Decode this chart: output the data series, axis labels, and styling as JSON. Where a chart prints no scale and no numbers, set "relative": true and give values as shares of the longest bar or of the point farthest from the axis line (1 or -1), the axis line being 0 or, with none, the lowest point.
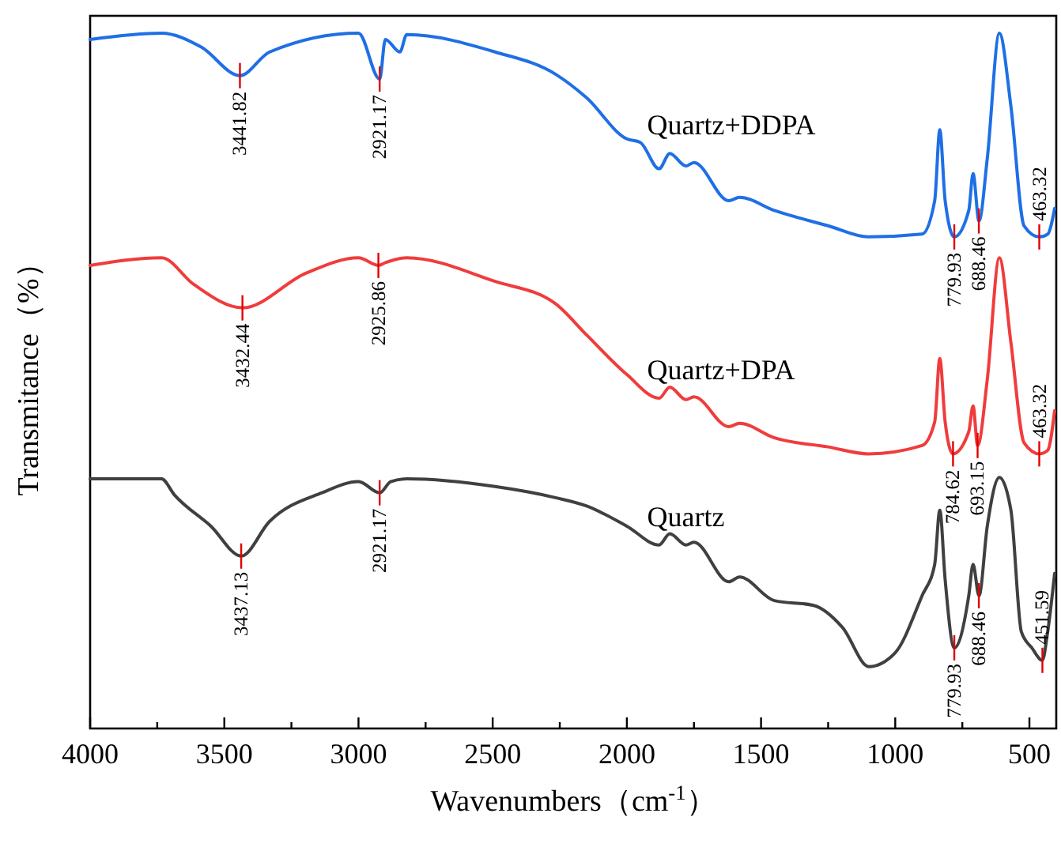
{
  "chart_data": {
    "type": "line",
    "relative": true,
    "xlabel": "Wavenumbers（cm$^{-1}$）",
    "ylabel": "Transmitance（%）",
    "legend": false,
    "grid": false,
    "xlim": [
      4000,
      400
    ],
    "xticks": [
      4000,
      {
        "value": 3750,
        "label": null
      },
      3500,
      {
        "value": 3250,
        "label": null
      },
      3000,
      {
        "value": 2750,
        "label": null
      },
      2500,
      {
        "value": 2250,
        "label": null
      },
      2000,
      {
        "value": 1750,
        "label": null
      },
      1500,
      {
        "value": 1250,
        "label": null
      },
      1000,
      {
        "value": 750,
        "label": null
      },
      500
    ],
    "series": [
      {
        "name": "Quartz+DDPA",
        "color": "#1f6fe5",
        "x": [
          4000,
          3734,
          3586,
          3442,
          3331,
          3000,
          2921,
          2900,
          2846,
          2820,
          2491,
          2266,
          2150,
          2000,
          1950,
          1880,
          1840,
          1780,
          1750,
          1620,
          1580,
          1450,
          1250,
          1100,
          900,
          853,
          834,
          814,
          780,
          726,
          710,
          688,
          657,
          612,
          569,
          520,
          463,
          432,
          406
        ],
        "values": [
          0.991,
          1.0,
          0.98,
          0.939,
          0.973,
          1.0,
          0.934,
          0.991,
          0.973,
          0.998,
          0.973,
          0.941,
          0.907,
          0.848,
          0.843,
          0.805,
          0.827,
          0.809,
          0.814,
          0.759,
          0.764,
          0.745,
          0.723,
          0.707,
          0.711,
          0.759,
          0.861,
          0.759,
          0.707,
          0.745,
          0.798,
          0.73,
          0.82,
          1.0,
          0.895,
          0.723,
          0.707,
          0.711,
          0.748
        ]
      },
      {
        "name": "Quartz+DPA",
        "color": "#f03c3c",
        "x": [
          4000,
          3734,
          3615,
          3432,
          3195,
          3000,
          2926,
          2900,
          2820,
          2491,
          2266,
          2150,
          2000,
          1880,
          1840,
          1780,
          1750,
          1620,
          1580,
          1450,
          1250,
          1100,
          900,
          853,
          834,
          814,
          785,
          726,
          710,
          693,
          657,
          612,
          569,
          520,
          463,
          432,
          406
        ],
        "values": [
          0.666,
          0.677,
          0.639,
          0.605,
          0.655,
          0.677,
          0.666,
          0.67,
          0.677,
          0.643,
          0.611,
          0.566,
          0.509,
          0.475,
          0.491,
          0.473,
          0.477,
          0.434,
          0.439,
          0.418,
          0.405,
          0.395,
          0.407,
          0.441,
          0.532,
          0.441,
          0.395,
          0.427,
          0.464,
          0.407,
          0.502,
          0.677,
          0.555,
          0.411,
          0.395,
          0.4,
          0.457
        ]
      },
      {
        "name": "Quartz",
        "color": "#404040",
        "x": [
          4000,
          3734,
          3686,
          3550,
          3437,
          3331,
          3136,
          3000,
          2921,
          2880,
          2820,
          2491,
          2266,
          2150,
          2000,
          1880,
          1840,
          1780,
          1750,
          1620,
          1580,
          1451,
          1304,
          1196,
          1098,
          1000,
          900,
          853,
          834,
          814,
          780,
          726,
          710,
          688,
          657,
          612,
          569,
          530,
          491,
          452,
          432,
          406
        ],
        "values": [
          0.359,
          0.359,
          0.336,
          0.291,
          0.248,
          0.298,
          0.339,
          0.355,
          0.339,
          0.355,
          0.359,
          0.348,
          0.332,
          0.32,
          0.291,
          0.264,
          0.28,
          0.264,
          0.268,
          0.211,
          0.218,
          0.184,
          0.177,
          0.145,
          0.089,
          0.109,
          0.191,
          0.236,
          0.314,
          0.214,
          0.116,
          0.191,
          0.236,
          0.191,
          0.291,
          0.361,
          0.314,
          0.139,
          0.116,
          0.098,
          0.139,
          0.223
        ]
      }
    ],
    "annotations": [
      {
        "text": "3441.82",
        "x": 3441.82,
        "y": 0.939
      },
      {
        "text": "2921.17",
        "x": 2921.17,
        "y": 0.934
      },
      {
        "text": "779.93",
        "x": 779.93,
        "y": 0.707
      },
      {
        "text": "688.46",
        "x": 688.46,
        "y": 0.73
      },
      {
        "text": "463.32",
        "x": 463.32,
        "y": 0.707
      },
      {
        "text": "3432.44",
        "x": 3432.44,
        "y": 0.605
      },
      {
        "text": "2925.86",
        "x": 2925.86,
        "y": 0.666
      },
      {
        "text": "784.62",
        "x": 784.62,
        "y": 0.395
      },
      {
        "text": "693.15",
        "x": 693.15,
        "y": 0.407
      },
      {
        "text": "463.32",
        "x": 463.32,
        "y": 0.395
      },
      {
        "text": "3437.13",
        "x": 3437.13,
        "y": 0.248
      },
      {
        "text": "2921.17",
        "x": 2921.17,
        "y": 0.339
      },
      {
        "text": "779.93",
        "x": 779.93,
        "y": 0.116
      },
      {
        "text": "688.46",
        "x": 688.46,
        "y": 0.191
      },
      {
        "text": "451.59",
        "x": 451.59,
        "y": 0.098
      }
    ]
  }
}
